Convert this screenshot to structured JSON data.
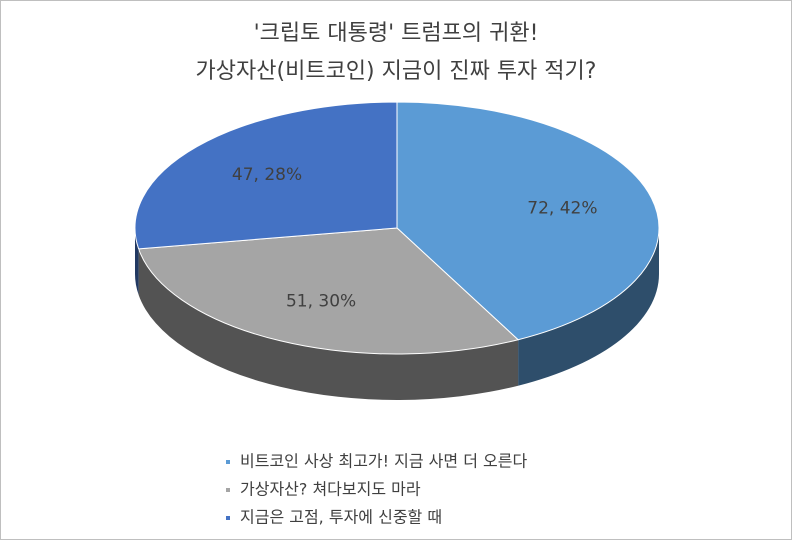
{
  "chart_data": {
    "type": "pie3d",
    "title": [
      "'크립토 대통령' 트럼프의 귀환!",
      "가상자산(비트코인) 지금이 진짜 투자 적기?"
    ],
    "categories": [
      "비트코인 사상 최고가! 지금 사면 더 오른다",
      "가상자산? 쳐다보지도 마라",
      "지금은 고점, 투자에 신중할 때"
    ],
    "values": [
      72,
      51,
      47
    ],
    "value_labels": [
      "72, 42%",
      "51, 30%",
      "47, 28%"
    ],
    "colors": [
      "#5b9bd5",
      "#a5a5a5",
      "#4472c4"
    ],
    "legend": "bottom"
  }
}
